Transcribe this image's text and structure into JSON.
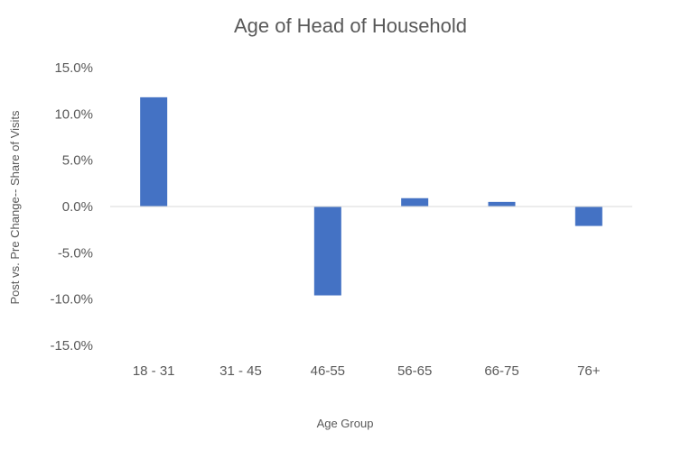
{
  "chart_data": {
    "type": "bar",
    "title": "Age of Head of Household",
    "xlabel": "Age Group",
    "ylabel": "Post vs. Pre Change-- Share of Visits",
    "categories": [
      "18 - 31",
      "31 - 45",
      "46-55",
      "56-65",
      "66-75",
      "76+"
    ],
    "values": [
      11.8,
      0.0,
      -9.6,
      0.9,
      0.5,
      -2.1
    ],
    "ylim": [
      -15,
      15
    ],
    "yticks": [
      15,
      10,
      5,
      0,
      -5,
      -10,
      -15
    ],
    "ytick_labels": [
      "15.0%",
      "10.0%",
      "5.0%",
      "0.0%",
      "-5.0%",
      "-10.0%",
      "-15.0%"
    ],
    "grid": false,
    "legend": "none",
    "bar_color": "#4472C4"
  }
}
